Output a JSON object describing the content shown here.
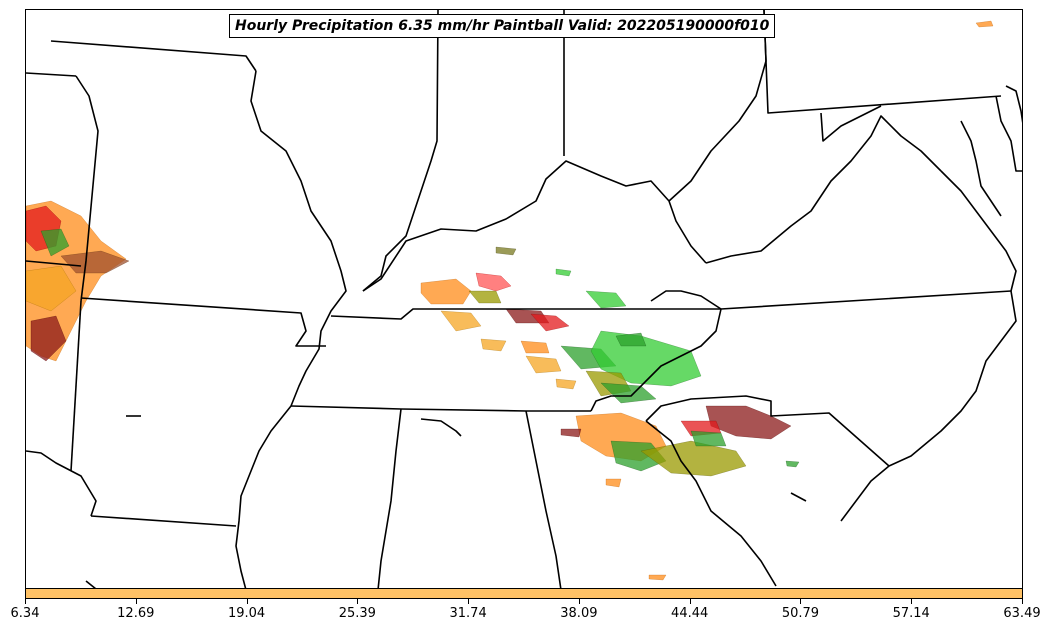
{
  "title": "Hourly Precipitation 6.35 mm/hr Paintball Valid: 202205190000f010",
  "colorbar": {
    "color": "#ffc266",
    "ticks": [
      "6.34",
      "12.69",
      "19.04",
      "25.39",
      "31.74",
      "38.09",
      "44.44",
      "50.79",
      "57.14",
      "63.49"
    ]
  },
  "colors": {
    "boundaries": "#000000",
    "paintball_palette": [
      "#ff8c1a",
      "#e31a1c",
      "#2ca02c",
      "#33cc33",
      "#8b1a1a",
      "#f5a623",
      "#999900",
      "#ff5555",
      "#7a7a20"
    ]
  }
}
